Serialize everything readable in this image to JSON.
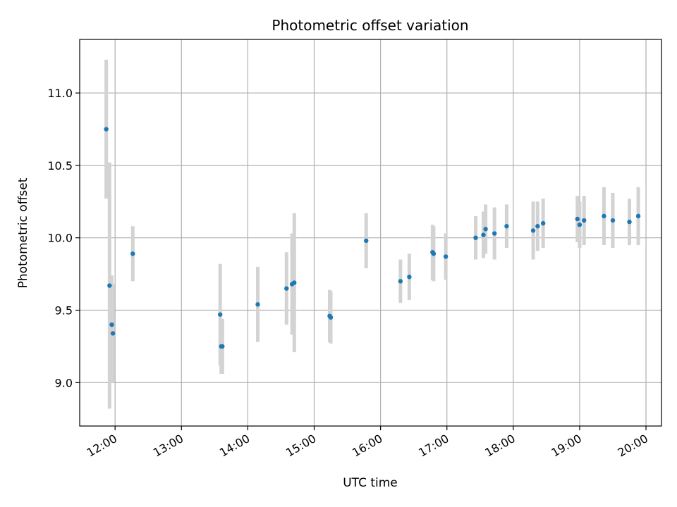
{
  "chart_data": {
    "type": "scatter",
    "title": "Photometric offset variation",
    "xlabel": "UTC time",
    "ylabel": "Photometric offset",
    "x_is_time": true,
    "xlim": [
      "11:28",
      "20:14"
    ],
    "ylim": [
      8.7,
      11.37
    ],
    "x_ticks": [
      "12:00",
      "13:00",
      "14:00",
      "15:00",
      "16:00",
      "17:00",
      "18:00",
      "19:00",
      "20:00"
    ],
    "y_ticks": [
      9.0,
      9.5,
      10.0,
      10.5,
      11.0
    ],
    "y_tick_labels": [
      "9.0",
      "9.5",
      "10.0",
      "10.5",
      "11.0"
    ],
    "grid": true,
    "point_color": "#1f77b4",
    "errorbar_color": "#d3d3d3",
    "points": [
      {
        "t": "11:52",
        "y": 10.75,
        "err": 0.48
      },
      {
        "t": "11:55",
        "y": 9.67,
        "err": 0.85
      },
      {
        "t": "11:57",
        "y": 9.4,
        "err": 0.34
      },
      {
        "t": "11:58",
        "y": 9.34,
        "err": 0.34
      },
      {
        "t": "12:16",
        "y": 9.89,
        "err": 0.19
      },
      {
        "t": "13:35",
        "y": 9.47,
        "err": 0.35
      },
      {
        "t": "13:36",
        "y": 9.25,
        "err": 0.19
      },
      {
        "t": "13:37",
        "y": 9.25,
        "err": 0.19
      },
      {
        "t": "14:09",
        "y": 9.54,
        "err": 0.26
      },
      {
        "t": "14:35",
        "y": 9.65,
        "err": 0.25
      },
      {
        "t": "14:40",
        "y": 9.68,
        "err": 0.35
      },
      {
        "t": "14:42",
        "y": 9.69,
        "err": 0.48
      },
      {
        "t": "15:14",
        "y": 9.46,
        "err": 0.18
      },
      {
        "t": "15:15",
        "y": 9.45,
        "err": 0.18
      },
      {
        "t": "15:47",
        "y": 9.98,
        "err": 0.19
      },
      {
        "t": "16:18",
        "y": 9.7,
        "err": 0.15
      },
      {
        "t": "16:26",
        "y": 9.73,
        "err": 0.16
      },
      {
        "t": "16:47",
        "y": 9.9,
        "err": 0.19
      },
      {
        "t": "16:48",
        "y": 9.89,
        "err": 0.19
      },
      {
        "t": "16:59",
        "y": 9.87,
        "err": 0.16
      },
      {
        "t": "17:26",
        "y": 10.0,
        "err": 0.15
      },
      {
        "t": "17:33",
        "y": 10.02,
        "err": 0.16
      },
      {
        "t": "17:35",
        "y": 10.06,
        "err": 0.17
      },
      {
        "t": "17:43",
        "y": 10.03,
        "err": 0.18
      },
      {
        "t": "17:54",
        "y": 10.08,
        "err": 0.15
      },
      {
        "t": "18:18",
        "y": 10.05,
        "err": 0.2
      },
      {
        "t": "18:22",
        "y": 10.08,
        "err": 0.17
      },
      {
        "t": "18:27",
        "y": 10.1,
        "err": 0.17
      },
      {
        "t": "18:58",
        "y": 10.13,
        "err": 0.16
      },
      {
        "t": "19:00",
        "y": 10.09,
        "err": 0.16
      },
      {
        "t": "19:04",
        "y": 10.12,
        "err": 0.17
      },
      {
        "t": "19:22",
        "y": 10.15,
        "err": 0.2
      },
      {
        "t": "19:30",
        "y": 10.12,
        "err": 0.19
      },
      {
        "t": "19:45",
        "y": 10.11,
        "err": 0.16
      },
      {
        "t": "19:53",
        "y": 10.15,
        "err": 0.2
      }
    ]
  }
}
